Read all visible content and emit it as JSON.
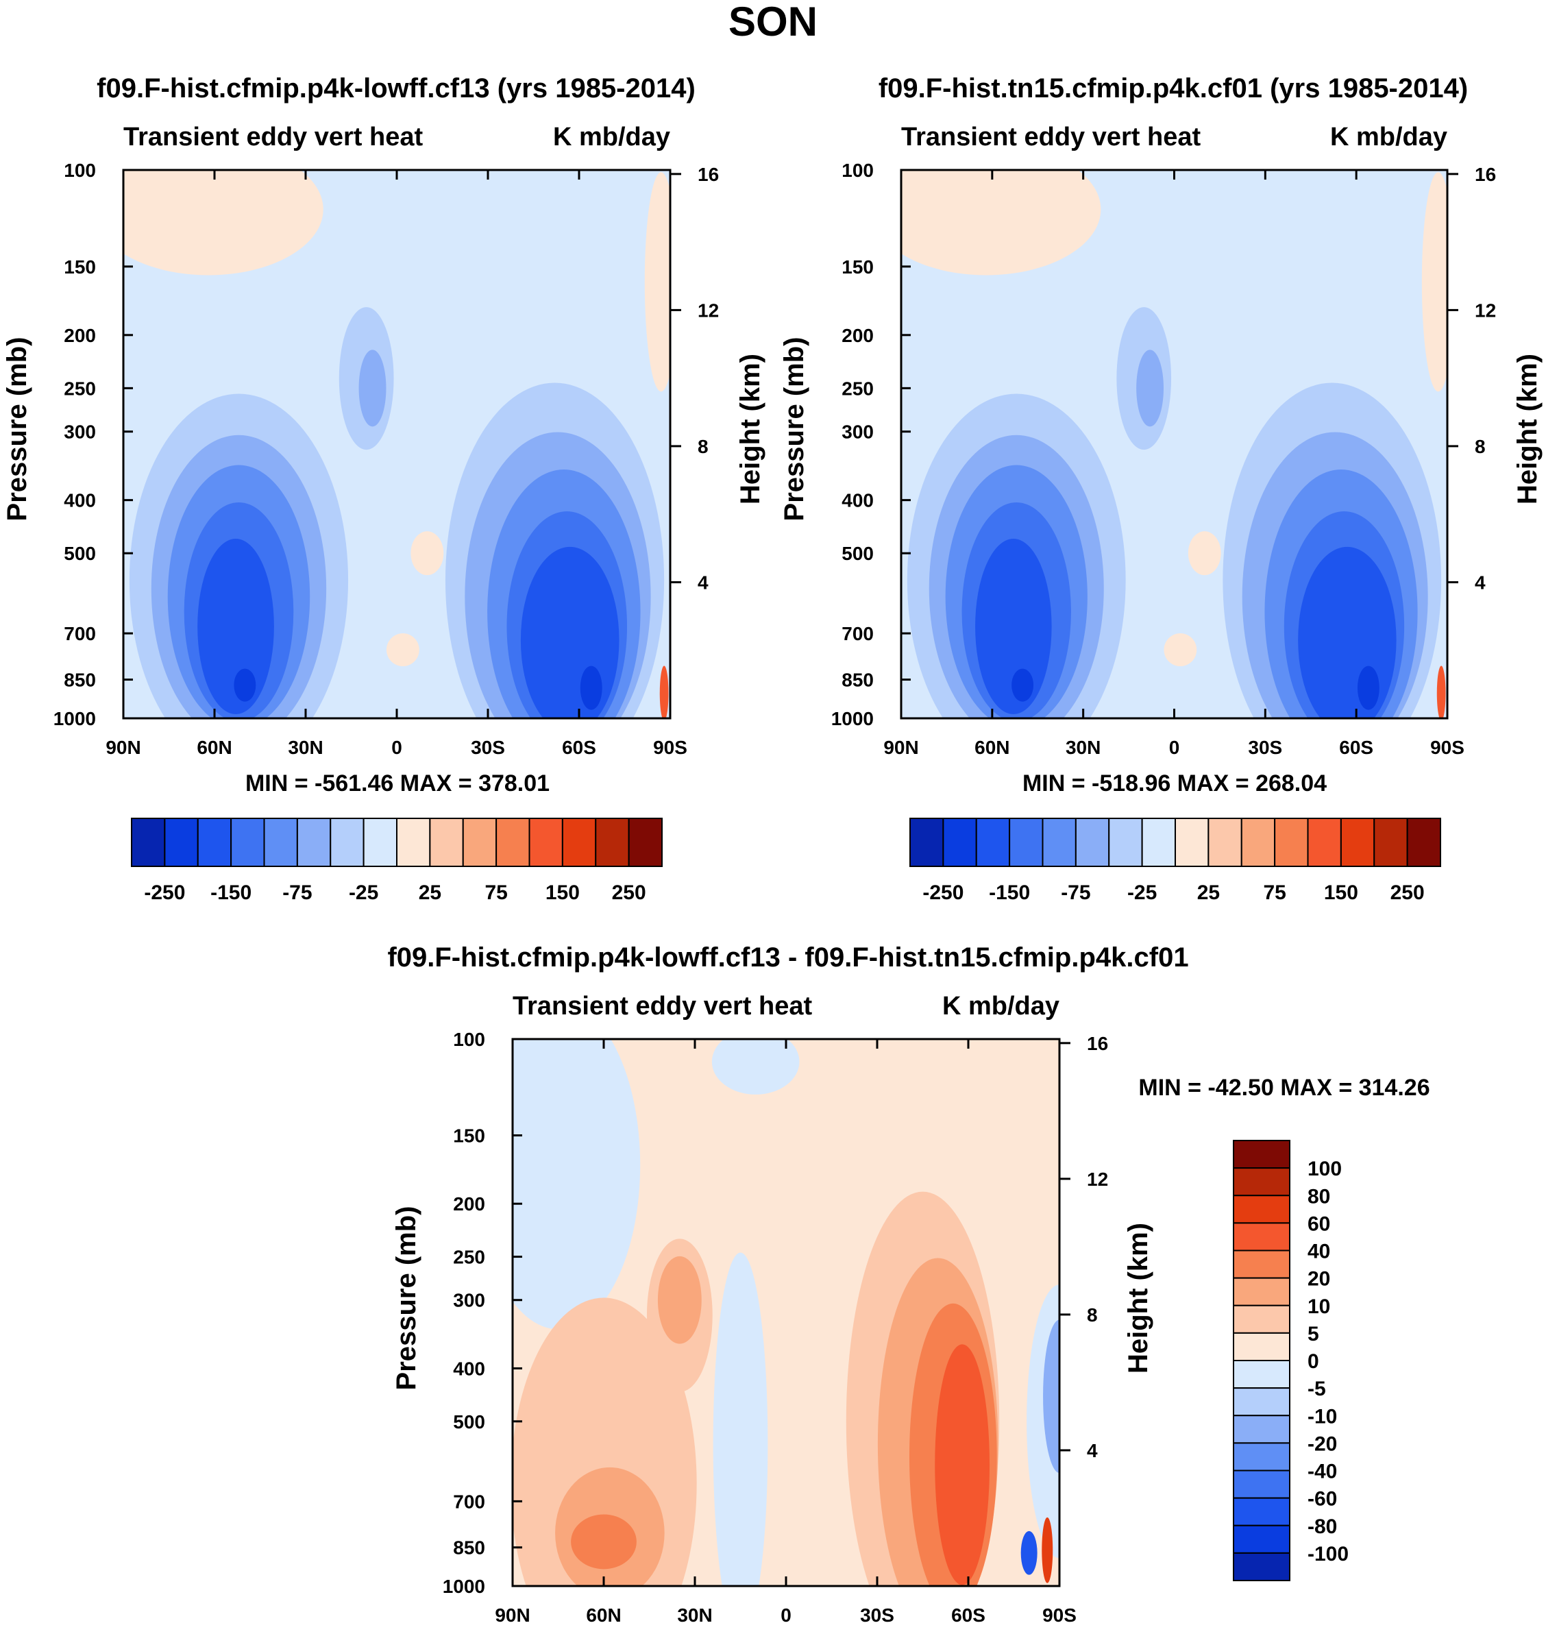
{
  "page_title": "SON",
  "colors": {
    "neg": [
      "#d7e9fd",
      "#b4cffb",
      "#8aaef7",
      "#5f8ff5",
      "#3e73f2",
      "#1e55ee",
      "#0a3de0",
      "#0625b0",
      "#04157a"
    ],
    "pos": [
      "#fde7d6",
      "#fcc8ab",
      "#f9a77c",
      "#f6804f",
      "#f4572e",
      "#e43d10",
      "#b62808",
      "#7e0a04"
    ]
  },
  "chart_data": [
    {
      "type": "contour",
      "title": "f09.F-hist.cfmip.p4k-lowff.cf13 (yrs 1985-2014)",
      "left_label": "Transient eddy vert heat",
      "right_label": "K mb/day",
      "ylabel": "Pressure (mb)",
      "y2label": "Height (km)",
      "xticks": [
        "90N",
        "60N",
        "30N",
        "0",
        "30S",
        "60S",
        "90S"
      ],
      "yticks": [
        100,
        150,
        200,
        250,
        300,
        400,
        500,
        700,
        850,
        1000
      ],
      "y2ticks": [
        16,
        12,
        8,
        4
      ],
      "ylim": [
        1000,
        100
      ],
      "stats": "MIN = -561.46   MAX = 378.01",
      "colorbar_labels": [
        "-250",
        "-150",
        "-75",
        "-25",
        "25",
        "75",
        "150",
        "250"
      ],
      "features": [
        {
          "lat": 52,
          "p": 520,
          "value": -250
        },
        {
          "lat": -55,
          "p": 570,
          "value": -250
        },
        {
          "lat": 8,
          "p": 250,
          "value": -25
        },
        {
          "lat": -10,
          "p": 500,
          "value": 25
        }
      ]
    },
    {
      "type": "contour",
      "title": "f09.F-hist.tn15.cfmip.p4k.cf01 (yrs 1985-2014)",
      "left_label": "Transient eddy vert heat",
      "right_label": "K mb/day",
      "ylabel": "Pressure (mb)",
      "y2label": "Height (km)",
      "xticks": [
        "90N",
        "60N",
        "30N",
        "0",
        "30S",
        "60S",
        "90S"
      ],
      "yticks": [
        100,
        150,
        200,
        250,
        300,
        400,
        500,
        700,
        850,
        1000
      ],
      "y2ticks": [
        16,
        12,
        8,
        4
      ],
      "ylim": [
        1000,
        100
      ],
      "stats": "MIN = -518.96   MAX = 268.04",
      "colorbar_labels": [
        "-250",
        "-150",
        "-75",
        "-25",
        "25",
        "75",
        "150",
        "250"
      ],
      "features": [
        {
          "lat": 52,
          "p": 520,
          "value": -250
        },
        {
          "lat": -55,
          "p": 570,
          "value": -250
        },
        {
          "lat": 8,
          "p": 250,
          "value": -25
        },
        {
          "lat": -10,
          "p": 500,
          "value": 25
        }
      ]
    },
    {
      "type": "contour",
      "title": "f09.F-hist.cfmip.p4k-lowff.cf13 - f09.F-hist.tn15.cfmip.p4k.cf01",
      "left_label": "Transient eddy vert heat",
      "right_label": "K mb/day",
      "ylabel": "Pressure (mb)",
      "y2label": "Height (km)",
      "xticks": [
        "90N",
        "60N",
        "30N",
        "0",
        "30S",
        "60S",
        "90S"
      ],
      "yticks": [
        100,
        150,
        200,
        250,
        300,
        400,
        500,
        700,
        850,
        1000
      ],
      "y2ticks": [
        16,
        12,
        8,
        4
      ],
      "ylim": [
        1000,
        100
      ],
      "stats": "MIN = -42.50   MAX = 314.26",
      "colorbar_labels": [
        "100",
        "80",
        "60",
        "40",
        "20",
        "10",
        "5",
        "0",
        "-5",
        "-10",
        "-20",
        "-40",
        "-60",
        "-80",
        "-100"
      ],
      "features": [
        {
          "lat": -50,
          "p": 550,
          "value": 40
        },
        {
          "lat": 60,
          "p": 820,
          "value": 20
        },
        {
          "lat": 35,
          "p": 300,
          "value": 10
        },
        {
          "lat": -80,
          "p": 400,
          "value": -20
        }
      ]
    }
  ]
}
